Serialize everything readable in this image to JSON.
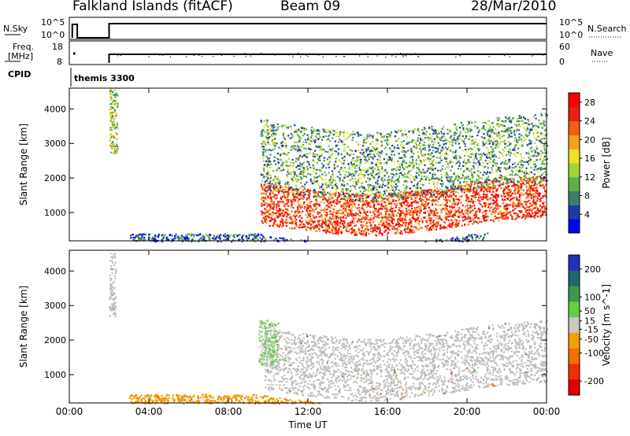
{
  "header": {
    "title": "Falkland Islands (fitACF)",
    "beam": "Beam 09",
    "date": "28/Mar/2010"
  },
  "top_labels": {
    "nsky": "N.Sky",
    "nsky_tick_hi": "10^5",
    "nsky_tick_lo": "10^0",
    "nsearch": "N.Search",
    "nsearch_tick_hi": "10^5",
    "nsearch_tick_lo": "10^0",
    "freq_l1": "Freq.",
    "freq_l2": "[MHz]",
    "freq_tick_hi": "18",
    "freq_tick_lo": "8",
    "nave": "Nave",
    "nave_tick_hi": "60",
    "nave_tick_lo": "0",
    "cpid": "CPID",
    "cpid_value": "themis 3300"
  },
  "chart_data": [
    {
      "type": "heatmap",
      "panel": "power",
      "xlabel": "",
      "ylabel": "Slant Range [km]",
      "x_ticks": [
        "00:00",
        "04:00",
        "08:00",
        "12:00",
        "16:00",
        "20:00",
        "00:00"
      ],
      "xlim_hours": [
        0,
        24
      ],
      "ylim": [
        180,
        4600
      ],
      "y_ticks": [
        1000,
        2000,
        3000,
        4000
      ],
      "colorbar": {
        "label": "Power [dB]",
        "ticks": [
          4,
          8,
          12,
          16,
          20,
          24,
          28
        ],
        "range": [
          0,
          30
        ],
        "colors": [
          "#0000ff",
          "#1a3ea8",
          "#3b7f6a",
          "#5ab04a",
          "#a5d23a",
          "#f0e020",
          "#f6a11a",
          "#f06010",
          "#e82010",
          "#ff0000"
        ]
      },
      "features": [
        {
          "hours": [
            9.6,
            24
          ],
          "range_km": [
            700,
            1900
          ],
          "description_level_db": 25
        },
        {
          "hours": [
            9.6,
            24
          ],
          "range_km": [
            1700,
            3700
          ],
          "description_level_db": 10
        },
        {
          "hours": [
            2.0,
            2.4
          ],
          "range_km": [
            2700,
            4600
          ],
          "description_level_db": 14
        },
        {
          "hours": [
            3,
            21
          ],
          "range_km": [
            180,
            400
          ],
          "description_level_db": 6
        }
      ]
    },
    {
      "type": "heatmap",
      "panel": "velocity",
      "xlabel": "Time UT",
      "ylabel": "Slant Range [km]",
      "x_ticks": [
        "00:00",
        "04:00",
        "08:00",
        "12:00",
        "16:00",
        "20:00",
        "00:00"
      ],
      "xlim_hours": [
        0,
        24
      ],
      "ylim": [
        180,
        4600
      ],
      "y_ticks": [
        1000,
        2000,
        3000,
        4000
      ],
      "colorbar": {
        "label": "Velocity [m s^-1]",
        "ticks": [
          200,
          100,
          50,
          15,
          -15,
          -50,
          -100,
          -200
        ],
        "range": [
          -250,
          250
        ],
        "colors": [
          "#2030c0",
          "#1e6a6a",
          "#3c9a4a",
          "#66cc44",
          "#c8c8c0",
          "#f0a000",
          "#f07000",
          "#f03000",
          "#e00000"
        ]
      },
      "ground_scatter_color": "#bebebe",
      "features": [
        {
          "hours": [
            9.8,
            24
          ],
          "range_km": [
            600,
            2400
          ],
          "kind": "ground-scatter"
        },
        {
          "hours": [
            9.5,
            10.5
          ],
          "range_km": [
            1300,
            2600
          ],
          "kind": "velocity",
          "velocity_ms": 30
        },
        {
          "hours": [
            2.0,
            2.3
          ],
          "range_km": [
            2700,
            4600
          ],
          "kind": "ground-scatter"
        },
        {
          "hours": [
            3,
            14
          ],
          "range_km": [
            180,
            450
          ],
          "kind": "velocity",
          "velocity_ms": -60
        }
      ]
    }
  ]
}
